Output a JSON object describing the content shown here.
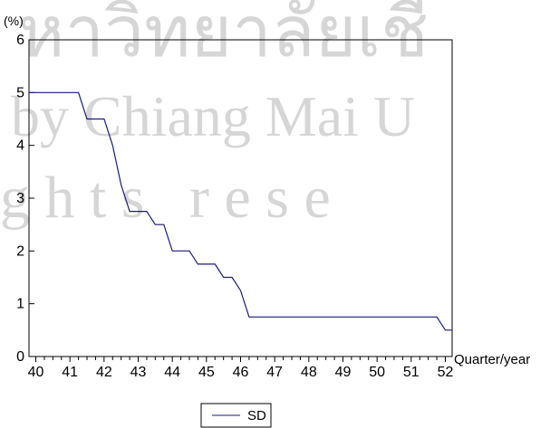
{
  "watermark": {
    "line1": "หาวิทยาลัยเชี",
    "line2": "by Chiang Mai U",
    "line3": "g h t s   r e s e"
  },
  "chart_data": {
    "type": "line",
    "title": "",
    "ylabel": "(%)",
    "xlabel": "Quarter/year",
    "xlim": [
      39.8,
      52.2
    ],
    "ylim": [
      0,
      6
    ],
    "yticks": [
      0,
      1,
      2,
      3,
      4,
      5,
      6
    ],
    "xticks": [
      40,
      41,
      42,
      43,
      44,
      45,
      46,
      47,
      48,
      49,
      50,
      51,
      52
    ],
    "minor_ticks_per_unit": 4,
    "grid": false,
    "legend_position": "bottom-center",
    "series": [
      {
        "name": "SD",
        "color": "#1a1a80",
        "x": [
          39.8,
          41.25,
          41.5,
          42.0,
          42.25,
          42.5,
          42.75,
          43.25,
          43.5,
          43.75,
          44.0,
          44.25,
          44.5,
          44.75,
          45.0,
          45.25,
          45.5,
          45.75,
          46.0,
          46.25,
          51.75,
          52.0,
          52.2
        ],
        "y": [
          5.0,
          5.0,
          4.5,
          4.5,
          4.0,
          3.25,
          2.75,
          2.75,
          2.5,
          2.5,
          2.0,
          2.0,
          2.0,
          1.75,
          1.75,
          1.75,
          1.5,
          1.5,
          1.25,
          0.75,
          0.75,
          0.5,
          0.5
        ]
      }
    ]
  }
}
